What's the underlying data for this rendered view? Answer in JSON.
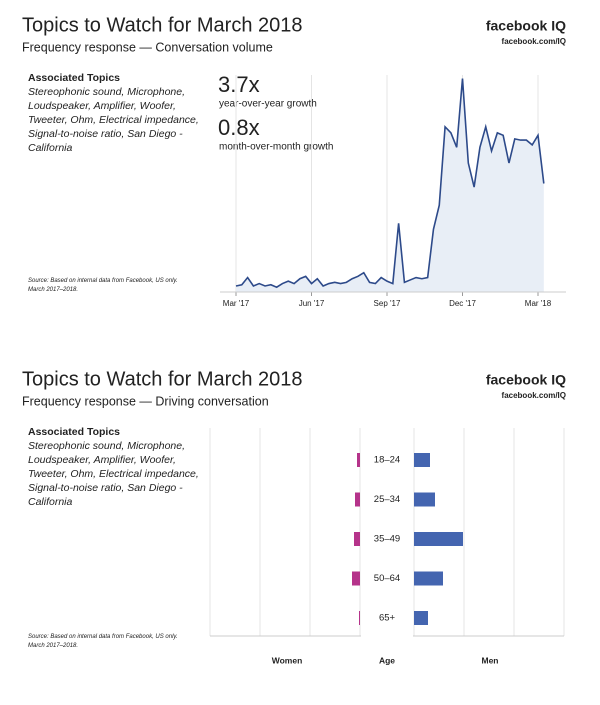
{
  "chart_data": [
    {
      "type": "line",
      "title": "Topics to Watch for March 2018",
      "subtitle": "Frequency response — Conversation volume",
      "brand": "facebook IQ",
      "url": "facebook.com/IQ",
      "topics_heading": "Associated Topics",
      "topics": "Stereophonic sound, Microphone, Loudspeaker, Amplifier, Woofer, Tweeter, Ohm, Electrical impedance, Signal-to-noise ratio, San Diego - California",
      "source": "Source: Based on internal data from Facebook, US only. March 2017–2018.",
      "annotations": [
        {
          "value": "3.7x",
          "label": "year-over-year growth"
        },
        {
          "value": "0.8x",
          "label": "month-over-month growth"
        }
      ],
      "color": "#2d4a8a",
      "fill": "#e8eef6",
      "values": [
        5,
        6,
        12,
        5,
        7,
        5,
        6,
        4,
        7,
        9,
        7,
        11,
        13,
        7,
        11,
        5,
        7,
        8,
        7,
        8,
        11,
        13,
        16,
        8,
        7,
        12,
        9,
        7,
        57,
        8,
        10,
        12,
        11,
        12,
        52,
        72,
        137,
        132,
        120,
        177,
        107,
        87,
        120,
        137,
        117,
        132,
        130,
        107,
        127,
        126,
        126,
        122,
        130,
        90
      ],
      "xlim": [
        0,
        52
      ],
      "xticks": [
        {
          "value": 0,
          "label": "Mar '17"
        },
        {
          "value": 13,
          "label": "Jun '17"
        },
        {
          "value": 26,
          "label": "Sep '17"
        },
        {
          "value": 39,
          "label": "Dec '17"
        },
        {
          "value": 52,
          "label": "Mar '18"
        }
      ],
      "ylim": [
        0,
        180
      ],
      "grid": true
    },
    {
      "type": "butterfly",
      "title": "Topics to Watch for March 2018",
      "subtitle": "Frequency response — Driving conversation",
      "brand": "facebook IQ",
      "url": "facebook.com/IQ",
      "topics_heading": "Associated Topics",
      "topics": "Stereophonic sound, Microphone, Loudspeaker, Amplifier, Woofer, Tweeter, Ohm, Electrical impedance, Signal-to-noise ratio, San Diego - California",
      "source": "Source: Based on internal data from Facebook, US only. March 2017–2018.",
      "axis_label": "Age",
      "categories": [
        "18–24",
        "25–34",
        "35–49",
        "50–64",
        "65+"
      ],
      "series": [
        {
          "name": "Women",
          "color": "#b5338a",
          "values": [
            0.6,
            1,
            1.2,
            1.6,
            0.2
          ]
        },
        {
          "name": "Men",
          "color": "#4465b0",
          "values": [
            3.2,
            4.2,
            9.8,
            5.8,
            2.8
          ]
        }
      ],
      "xlim": [
        0,
        30
      ],
      "xticks": [
        0,
        10,
        20,
        30
      ],
      "grid": true
    }
  ]
}
